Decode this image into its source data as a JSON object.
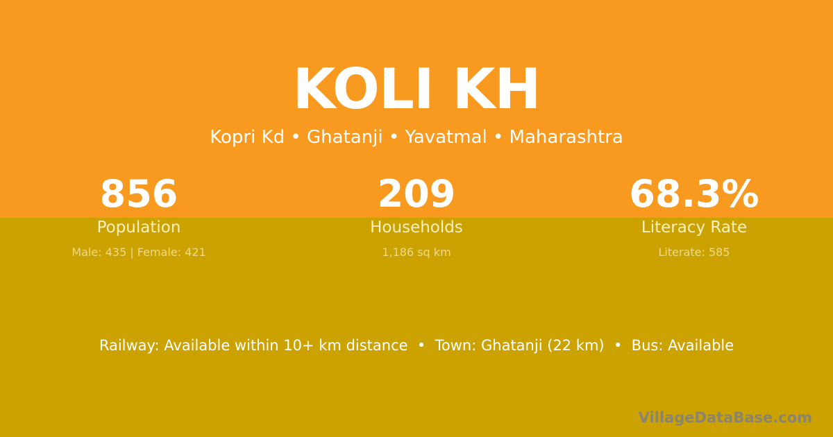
{
  "colors": {
    "top_bg": "#F89A20",
    "bottom_bg": "#CBA200"
  },
  "title": "KOLI KH",
  "subtitle": "Kopri Kd • Ghatanji • Yavatmal • Maharashtra",
  "stats": [
    {
      "value": "856",
      "label": "Population",
      "detail": "Male: 435 | Female: 421"
    },
    {
      "value": "209",
      "label": "Households",
      "detail": "1,186 sq km"
    },
    {
      "value": "68.3%",
      "label": "Literacy Rate",
      "detail": "Literate: 585"
    }
  ],
  "info_line": "Railway: Available within 10+ km distance  •  Town: Ghatanji (22 km)  •  Bus: Available",
  "brand": "VillageDataBase.com"
}
